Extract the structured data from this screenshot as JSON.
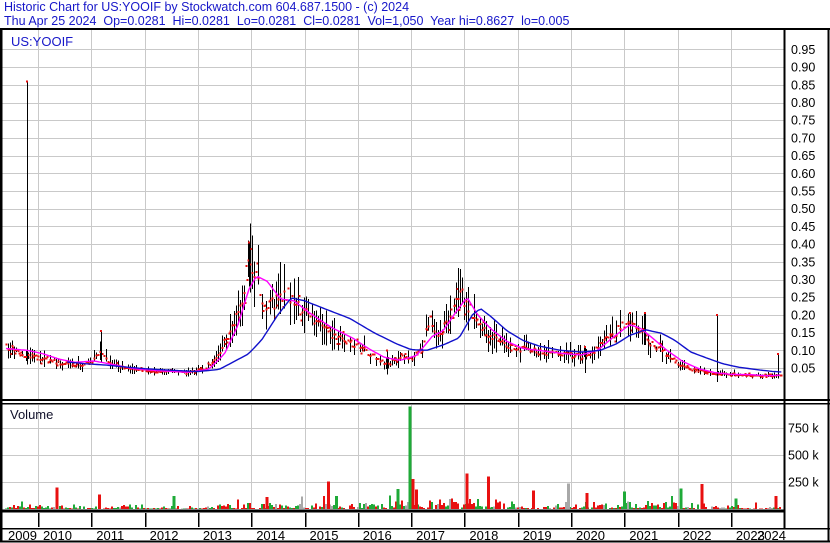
{
  "header": {
    "line1": "Historic Chart for US:YOOIF by Stockwatch.com 604.687.1500 - (c) 2024",
    "line2": "Thu Apr 25 2024  Op=0.0281  Hi=0.0281  Lo=0.0281  Cl=0.0281  Vol=1,050  Year hi=0.8627  lo=0.005"
  },
  "chart_labels": {
    "symbol": "US:YOOIF",
    "volume": "Volume"
  },
  "colors": {
    "header_text": "#1717c9",
    "grid": "#c9c9c9",
    "frame": "#000000",
    "bar_wick": "#000000",
    "close_tick": "#e81010",
    "ma_fast": "#ff00ff",
    "ma_slow": "#1111cc",
    "vol_up": "#1faa38",
    "vol_down": "#e81010",
    "vol_neutral": "#a8a8a8",
    "axis_text": "#000000"
  },
  "chart_data": {
    "type": "ohlc+volume",
    "title": "Historic Chart for US:YOOIF",
    "symbol": "US:YOOIF",
    "last_quote": {
      "date": "Thu Apr 25 2024",
      "open": 0.0281,
      "high": 0.0281,
      "low": 0.0281,
      "close": 0.0281,
      "volume": "1,050",
      "year_high": 0.8627,
      "year_low": 0.005
    },
    "x_axis": {
      "year_labels": [
        "2009",
        "2010",
        "2011",
        "2012",
        "2013",
        "2014",
        "2015",
        "2016",
        "2017",
        "2018",
        "2019",
        "2020",
        "2021",
        "2022",
        "2023",
        "2024"
      ],
      "start_year_fraction": 2009.36,
      "end_year_fraction": 2023.95
    },
    "price_axis": {
      "ticks": [
        "0.95",
        "0.90",
        "0.85",
        "0.80",
        "0.75",
        "0.70",
        "0.65",
        "0.60",
        "0.55",
        "0.50",
        "0.45",
        "0.40",
        "0.35",
        "0.30",
        "0.25",
        "0.20",
        "0.15",
        "0.10",
        "0.05"
      ],
      "range": [
        0,
        1.0
      ],
      "grid": true,
      "position": "right"
    },
    "volume_axis": {
      "ticks": [
        {
          "value_k": 750,
          "label": "750 k"
        },
        {
          "value_k": 500,
          "label": "500 k"
        },
        {
          "value_k": 250,
          "label": "250 k"
        }
      ],
      "range_k": [
        0,
        960
      ],
      "position": "right"
    },
    "series": {
      "close_anchors": [
        [
          2009.36,
          0.115
        ],
        [
          2009.55,
          0.1
        ],
        [
          2009.75,
          0.088
        ],
        [
          2010.0,
          0.08
        ],
        [
          2010.2,
          0.072
        ],
        [
          2010.5,
          0.063
        ],
        [
          2010.8,
          0.06
        ],
        [
          2011.0,
          0.066
        ],
        [
          2011.18,
          0.1
        ],
        [
          2011.3,
          0.07
        ],
        [
          2011.6,
          0.052
        ],
        [
          2011.9,
          0.046
        ],
        [
          2012.2,
          0.04
        ],
        [
          2012.5,
          0.043
        ],
        [
          2012.8,
          0.036
        ],
        [
          2013.1,
          0.046
        ],
        [
          2013.35,
          0.08
        ],
        [
          2013.6,
          0.15
        ],
        [
          2013.8,
          0.23
        ],
        [
          2013.95,
          0.36
        ],
        [
          2014.08,
          0.31
        ],
        [
          2014.25,
          0.21
        ],
        [
          2014.45,
          0.24
        ],
        [
          2014.65,
          0.265
        ],
        [
          2014.9,
          0.22
        ],
        [
          2015.1,
          0.19
        ],
        [
          2015.4,
          0.16
        ],
        [
          2015.7,
          0.13
        ],
        [
          2016.0,
          0.11
        ],
        [
          2016.3,
          0.085
        ],
        [
          2016.55,
          0.06
        ],
        [
          2016.8,
          0.085
        ],
        [
          2017.0,
          0.075
        ],
        [
          2017.2,
          0.1
        ],
        [
          2017.35,
          0.19
        ],
        [
          2017.5,
          0.15
        ],
        [
          2017.7,
          0.175
        ],
        [
          2017.9,
          0.27
        ],
        [
          2018.0,
          0.24
        ],
        [
          2018.15,
          0.2
        ],
        [
          2018.3,
          0.17
        ],
        [
          2018.5,
          0.14
        ],
        [
          2018.8,
          0.115
        ],
        [
          2019.0,
          0.105
        ],
        [
          2019.5,
          0.095
        ],
        [
          2019.9,
          0.088
        ],
        [
          2020.15,
          0.082
        ],
        [
          2020.4,
          0.09
        ],
        [
          2020.6,
          0.13
        ],
        [
          2020.75,
          0.14
        ],
        [
          2020.9,
          0.16
        ],
        [
          2021.05,
          0.19
        ],
        [
          2021.2,
          0.17
        ],
        [
          2021.35,
          0.15
        ],
        [
          2021.5,
          0.12
        ],
        [
          2021.7,
          0.1
        ],
        [
          2021.9,
          0.075
        ],
        [
          2022.1,
          0.055
        ],
        [
          2022.4,
          0.042
        ],
        [
          2022.7,
          0.035
        ],
        [
          2023.0,
          0.032
        ],
        [
          2023.3,
          0.029
        ],
        [
          2023.55,
          0.026
        ],
        [
          2023.75,
          0.028
        ],
        [
          2023.95,
          0.028
        ]
      ],
      "ma_fast": {
        "name": "short moving average",
        "points": [
          [
            2009.4,
            0.105
          ],
          [
            2009.8,
            0.1
          ],
          [
            2010.1,
            0.09
          ],
          [
            2010.4,
            0.075
          ],
          [
            2010.7,
            0.066
          ],
          [
            2011.05,
            0.07
          ],
          [
            2011.4,
            0.06
          ],
          [
            2011.8,
            0.048
          ],
          [
            2012.3,
            0.042
          ],
          [
            2012.8,
            0.038
          ],
          [
            2013.2,
            0.046
          ],
          [
            2013.5,
            0.09
          ],
          [
            2013.75,
            0.17
          ],
          [
            2013.95,
            0.27
          ],
          [
            2014.1,
            0.31
          ],
          [
            2014.3,
            0.295
          ],
          [
            2014.55,
            0.245
          ],
          [
            2014.8,
            0.24
          ],
          [
            2015.1,
            0.205
          ],
          [
            2015.5,
            0.165
          ],
          [
            2015.9,
            0.135
          ],
          [
            2016.2,
            0.105
          ],
          [
            2016.5,
            0.08
          ],
          [
            2016.8,
            0.072
          ],
          [
            2017.1,
            0.085
          ],
          [
            2017.4,
            0.14
          ],
          [
            2017.6,
            0.155
          ],
          [
            2017.85,
            0.21
          ],
          [
            2018.05,
            0.25
          ],
          [
            2018.25,
            0.2
          ],
          [
            2018.5,
            0.16
          ],
          [
            2018.8,
            0.125
          ],
          [
            2019.1,
            0.105
          ],
          [
            2019.5,
            0.098
          ],
          [
            2019.9,
            0.09
          ],
          [
            2020.2,
            0.087
          ],
          [
            2020.5,
            0.1
          ],
          [
            2020.8,
            0.138
          ],
          [
            2021.1,
            0.172
          ],
          [
            2021.3,
            0.163
          ],
          [
            2021.55,
            0.132
          ],
          [
            2021.8,
            0.1
          ],
          [
            2022.1,
            0.068
          ],
          [
            2022.4,
            0.048
          ],
          [
            2022.7,
            0.037
          ],
          [
            2023.0,
            0.032
          ],
          [
            2023.4,
            0.031
          ],
          [
            2023.7,
            0.028
          ],
          [
            2023.95,
            0.03
          ]
        ]
      },
      "ma_slow": {
        "name": "long moving average",
        "points": [
          [
            2010.55,
            0.067
          ],
          [
            2010.9,
            0.062
          ],
          [
            2011.3,
            0.058
          ],
          [
            2011.7,
            0.052
          ],
          [
            2012.1,
            0.047
          ],
          [
            2012.6,
            0.043
          ],
          [
            2013.0,
            0.04
          ],
          [
            2013.4,
            0.046
          ],
          [
            2013.7,
            0.07
          ],
          [
            2013.95,
            0.09
          ],
          [
            2014.2,
            0.13
          ],
          [
            2014.5,
            0.2
          ],
          [
            2014.75,
            0.248
          ],
          [
            2015.0,
            0.24
          ],
          [
            2015.3,
            0.222
          ],
          [
            2015.85,
            0.19
          ],
          [
            2016.3,
            0.15
          ],
          [
            2016.7,
            0.12
          ],
          [
            2017.0,
            0.102
          ],
          [
            2017.3,
            0.1
          ],
          [
            2017.6,
            0.115
          ],
          [
            2017.9,
            0.135
          ],
          [
            2018.15,
            0.2
          ],
          [
            2018.3,
            0.218
          ],
          [
            2018.5,
            0.195
          ],
          [
            2018.8,
            0.155
          ],
          [
            2019.1,
            0.128
          ],
          [
            2019.4,
            0.112
          ],
          [
            2019.8,
            0.1
          ],
          [
            2020.2,
            0.095
          ],
          [
            2020.55,
            0.1
          ],
          [
            2020.85,
            0.118
          ],
          [
            2021.1,
            0.142
          ],
          [
            2021.4,
            0.158
          ],
          [
            2021.7,
            0.148
          ],
          [
            2021.95,
            0.128
          ],
          [
            2022.25,
            0.095
          ],
          [
            2022.55,
            0.078
          ],
          [
            2022.85,
            0.062
          ],
          [
            2023.15,
            0.052
          ],
          [
            2023.5,
            0.045
          ],
          [
            2023.8,
            0.04
          ],
          [
            2023.95,
            0.039
          ]
        ]
      },
      "price_spikes": [
        {
          "t": 2009.79,
          "high": 0.86,
          "low": 0.06
        },
        {
          "t": 2011.18,
          "high": 0.155,
          "low": 0.065
        },
        {
          "t": 2013.95,
          "high": 0.405,
          "low": 0.28
        },
        {
          "t": 2016.55,
          "high": 0.1,
          "low": 0.032
        },
        {
          "t": 2020.26,
          "high": 0.11,
          "low": 0.036
        },
        {
          "t": 2021.1,
          "high": 0.205,
          "low": 0.125
        },
        {
          "t": 2021.38,
          "high": 0.205,
          "low": 0.115
        },
        {
          "t": 2022.74,
          "high": 0.2,
          "low": 0.01
        },
        {
          "t": 2023.88,
          "high": 0.09,
          "low": 0.022
        }
      ],
      "volume_activity_k": [
        [
          2009.4,
          28
        ],
        [
          2010.5,
          34
        ],
        [
          2011.5,
          30
        ],
        [
          2012.5,
          24
        ],
        [
          2013.3,
          26
        ],
        [
          2014.0,
          40
        ],
        [
          2014.8,
          45
        ],
        [
          2015.5,
          40
        ],
        [
          2016.5,
          45
        ],
        [
          2017.3,
          60
        ],
        [
          2017.9,
          70
        ],
        [
          2018.5,
          60
        ],
        [
          2019.5,
          45
        ],
        [
          2020.5,
          42
        ],
        [
          2021.2,
          52
        ],
        [
          2021.9,
          45
        ],
        [
          2022.5,
          38
        ],
        [
          2023.3,
          22
        ],
        [
          2023.95,
          18
        ]
      ],
      "volume_spikes_k": [
        {
          "t": 2010.36,
          "v": 200,
          "c": "down"
        },
        {
          "t": 2011.15,
          "v": 135,
          "c": "down"
        },
        {
          "t": 2012.55,
          "v": 120,
          "c": "up"
        },
        {
          "t": 2014.3,
          "v": 110,
          "c": "down"
        },
        {
          "t": 2015.45,
          "v": 255,
          "c": "down"
        },
        {
          "t": 2015.6,
          "v": 120,
          "c": "up"
        },
        {
          "t": 2016.75,
          "v": 185,
          "c": "up"
        },
        {
          "t": 2016.98,
          "v": 950,
          "c": "up"
        },
        {
          "t": 2017.04,
          "v": 280,
          "c": "down"
        },
        {
          "t": 2017.1,
          "v": 180,
          "c": "down"
        },
        {
          "t": 2018.05,
          "v": 330,
          "c": "down"
        },
        {
          "t": 2018.45,
          "v": 300,
          "c": "down"
        },
        {
          "t": 2019.3,
          "v": 170,
          "c": "down"
        },
        {
          "t": 2019.95,
          "v": 235,
          "c": "neutral"
        },
        {
          "t": 2020.3,
          "v": 150,
          "c": "down"
        },
        {
          "t": 2021.0,
          "v": 160,
          "c": "up"
        },
        {
          "t": 2022.06,
          "v": 190,
          "c": "up"
        },
        {
          "t": 2022.46,
          "v": 230,
          "c": "down"
        },
        {
          "t": 2023.1,
          "v": 95,
          "c": "up"
        },
        {
          "t": 2023.85,
          "v": 120,
          "c": "down"
        }
      ],
      "seed": 1337
    }
  }
}
